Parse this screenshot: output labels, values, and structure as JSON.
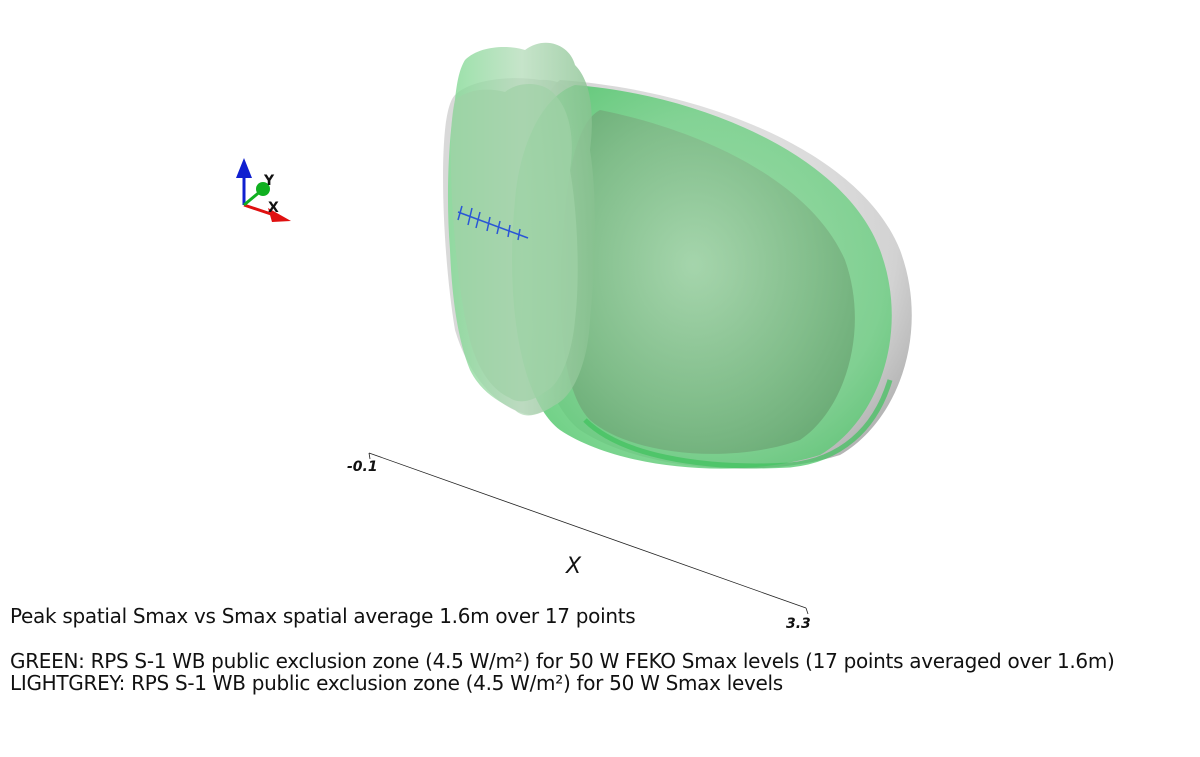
{
  "view": {
    "title": "Peak spatial Smax vs Smax spatial average 1.6m over 17 points",
    "legend": [
      {
        "color_name": "green",
        "text": "GREEN: RPS S-1 WB public exclusion zone (4.5 W/m²) for 50 W FEKO Smax levels (17 points averaged over 1.6m)",
        "fill": "#59e87d"
      },
      {
        "color_name": "lightgrey",
        "text": "LIGHTGREY: RPS S-1 WB public exclusion zone (4.5 W/m²) for 50 W Smax levels",
        "fill": "#c8c8c8"
      }
    ],
    "axis": {
      "label": "X",
      "min_label": "-0.1",
      "max_label": "3.3"
    },
    "orientation_triad": {
      "y_label": "Y",
      "x_label": "X",
      "colors": {
        "x": "#e01010",
        "y": "#10b020",
        "z": "#1020d0"
      }
    },
    "antenna_color": "#2a56d6"
  }
}
